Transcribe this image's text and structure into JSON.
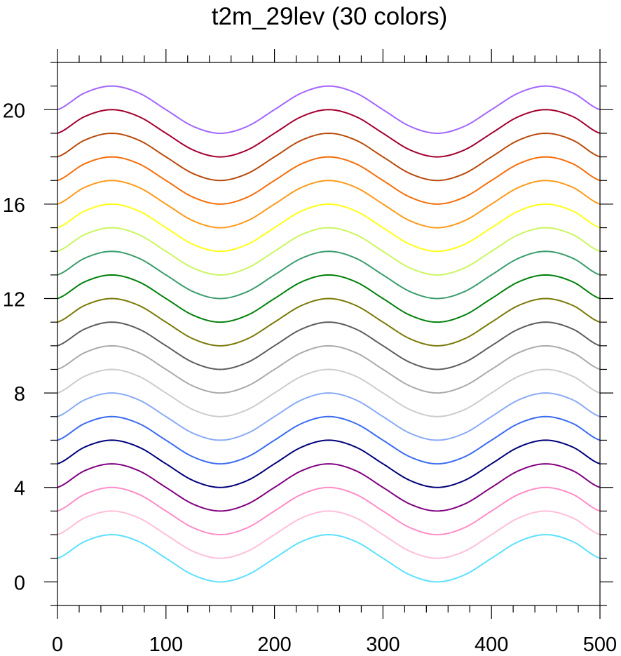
{
  "chart_data": {
    "type": "line",
    "title": "t2m_29lev (30 colors)",
    "xlabel": "",
    "ylabel": "",
    "xlim": [
      0,
      500
    ],
    "ylim": [
      -1,
      22
    ],
    "xticks": [
      0,
      100,
      200,
      300,
      400,
      500
    ],
    "yticks": [
      0,
      4,
      8,
      12,
      16,
      20
    ],
    "grid": false,
    "legend": "none",
    "x": [
      0,
      25,
      50,
      75,
      100,
      125,
      150,
      175,
      200,
      225,
      250,
      275,
      300,
      325,
      350,
      375,
      400,
      425,
      450,
      475,
      500
    ],
    "series": [
      {
        "color": "#5ee0ff",
        "values": [
          1.0,
          1.707,
          2.0,
          1.707,
          1.0,
          0.293,
          0.0,
          0.293,
          1.0,
          1.707,
          2.0,
          1.707,
          1.0,
          0.293,
          0.0,
          0.293,
          1.0,
          1.707,
          2.0,
          1.707,
          1.0
        ]
      },
      {
        "color": "#ffbfdb",
        "values": [
          2.0,
          2.707,
          3.0,
          2.707,
          2.0,
          1.293,
          1.0,
          1.293,
          2.0,
          2.707,
          3.0,
          2.707,
          2.0,
          1.293,
          1.0,
          1.293,
          2.0,
          2.707,
          3.0,
          2.707,
          2.0
        ]
      },
      {
        "color": "#ff8cc6",
        "values": [
          3.0,
          3.707,
          4.0,
          3.707,
          3.0,
          2.293,
          2.0,
          2.293,
          3.0,
          3.707,
          4.0,
          3.707,
          3.0,
          2.293,
          2.0,
          2.293,
          3.0,
          3.707,
          4.0,
          3.707,
          3.0
        ]
      },
      {
        "color": "#800080",
        "values": [
          4.0,
          4.707,
          5.0,
          4.707,
          4.0,
          3.293,
          3.0,
          3.293,
          4.0,
          4.707,
          5.0,
          4.707,
          4.0,
          3.293,
          3.0,
          3.293,
          4.0,
          4.707,
          5.0,
          4.707,
          4.0
        ]
      },
      {
        "color": "#00007a",
        "values": [
          5.0,
          5.707,
          6.0,
          5.707,
          5.0,
          4.293,
          4.0,
          4.293,
          5.0,
          5.707,
          6.0,
          5.707,
          5.0,
          4.293,
          4.0,
          4.293,
          5.0,
          5.707,
          6.0,
          5.707,
          5.0
        ]
      },
      {
        "color": "#3b6cf0",
        "values": [
          6.0,
          6.707,
          7.0,
          6.707,
          6.0,
          5.293,
          5.0,
          5.293,
          6.0,
          6.707,
          7.0,
          6.707,
          6.0,
          5.293,
          5.0,
          5.293,
          6.0,
          6.707,
          7.0,
          6.707,
          6.0
        ]
      },
      {
        "color": "#8aaaf7",
        "values": [
          7.0,
          7.707,
          8.0,
          7.707,
          7.0,
          6.293,
          6.0,
          6.293,
          7.0,
          7.707,
          8.0,
          7.707,
          7.0,
          6.293,
          6.0,
          6.293,
          7.0,
          7.707,
          8.0,
          7.707,
          7.0
        ]
      },
      {
        "color": "#cccccc",
        "values": [
          8.0,
          8.707,
          9.0,
          8.707,
          8.0,
          7.293,
          7.0,
          7.293,
          8.0,
          8.707,
          9.0,
          8.707,
          8.0,
          7.293,
          7.0,
          7.293,
          8.0,
          8.707,
          9.0,
          8.707,
          8.0
        ]
      },
      {
        "color": "#aaaaaa",
        "values": [
          9.0,
          9.707,
          10.0,
          9.707,
          9.0,
          8.293,
          8.0,
          8.293,
          9.0,
          9.707,
          10.0,
          9.707,
          9.0,
          8.293,
          8.0,
          8.293,
          9.0,
          9.707,
          10.0,
          9.707,
          9.0
        ]
      },
      {
        "color": "#5e5e5e",
        "values": [
          10.0,
          10.707,
          11.0,
          10.707,
          10.0,
          9.293,
          9.0,
          9.293,
          10.0,
          10.707,
          11.0,
          10.707,
          10.0,
          9.293,
          9.0,
          9.293,
          10.0,
          10.707,
          11.0,
          10.707,
          10.0
        ]
      },
      {
        "color": "#7a7a0a",
        "values": [
          11.0,
          11.707,
          12.0,
          11.707,
          11.0,
          10.293,
          10.0,
          10.293,
          11.0,
          11.707,
          12.0,
          11.707,
          11.0,
          10.293,
          10.0,
          10.293,
          11.0,
          11.707,
          12.0,
          11.707,
          11.0
        ]
      },
      {
        "color": "#00800a",
        "values": [
          12.0,
          12.707,
          13.0,
          12.707,
          12.0,
          11.293,
          11.0,
          11.293,
          12.0,
          12.707,
          13.0,
          12.707,
          12.0,
          11.293,
          11.0,
          11.293,
          12.0,
          12.707,
          13.0,
          12.707,
          12.0
        ]
      },
      {
        "color": "#3a9c6c",
        "values": [
          13.0,
          13.707,
          14.0,
          13.707,
          13.0,
          12.293,
          12.0,
          12.293,
          13.0,
          13.707,
          14.0,
          13.707,
          13.0,
          12.293,
          12.0,
          12.293,
          13.0,
          13.707,
          14.0,
          13.707,
          13.0
        ]
      },
      {
        "color": "#ccf560",
        "values": [
          14.0,
          14.707,
          15.0,
          14.707,
          14.0,
          13.293,
          13.0,
          13.293,
          14.0,
          14.707,
          15.0,
          14.707,
          14.0,
          13.293,
          13.0,
          13.293,
          14.0,
          14.707,
          15.0,
          14.707,
          14.0
        ]
      },
      {
        "color": "#ffff1a",
        "values": [
          15.0,
          15.707,
          16.0,
          15.707,
          15.0,
          14.293,
          14.0,
          14.293,
          15.0,
          15.707,
          16.0,
          15.707,
          15.0,
          14.293,
          14.0,
          14.293,
          15.0,
          15.707,
          16.0,
          15.707,
          15.0
        ]
      },
      {
        "color": "#ff9a1a",
        "values": [
          16.0,
          16.707,
          17.0,
          16.707,
          16.0,
          15.293,
          15.0,
          15.293,
          16.0,
          16.707,
          17.0,
          16.707,
          16.0,
          15.293,
          15.0,
          15.293,
          16.0,
          16.707,
          17.0,
          16.707,
          16.0
        ]
      },
      {
        "color": "#f56e0a",
        "values": [
          17.0,
          17.707,
          18.0,
          17.707,
          17.0,
          16.293,
          16.0,
          16.293,
          17.0,
          17.707,
          18.0,
          17.707,
          17.0,
          16.293,
          16.0,
          16.293,
          17.0,
          17.707,
          18.0,
          17.707,
          17.0
        ]
      },
      {
        "color": "#b84a0a",
        "values": [
          18.0,
          18.707,
          19.0,
          18.707,
          18.0,
          17.293,
          17.0,
          17.293,
          18.0,
          18.707,
          19.0,
          18.707,
          18.0,
          17.293,
          17.0,
          17.293,
          18.0,
          18.707,
          19.0,
          18.707,
          18.0
        ]
      },
      {
        "color": "#a3002e",
        "values": [
          19.0,
          19.707,
          20.0,
          19.707,
          19.0,
          18.293,
          18.0,
          18.293,
          19.0,
          19.707,
          20.0,
          19.707,
          19.0,
          18.293,
          18.0,
          18.293,
          19.0,
          19.707,
          20.0,
          19.707,
          19.0
        ]
      },
      {
        "color": "#a366ff",
        "values": [
          20.0,
          20.707,
          21.0,
          20.707,
          20.0,
          19.293,
          19.0,
          19.293,
          20.0,
          20.707,
          21.0,
          20.707,
          20.0,
          19.293,
          19.0,
          19.293,
          20.0,
          20.707,
          21.0,
          20.707,
          20.0
        ]
      }
    ]
  }
}
